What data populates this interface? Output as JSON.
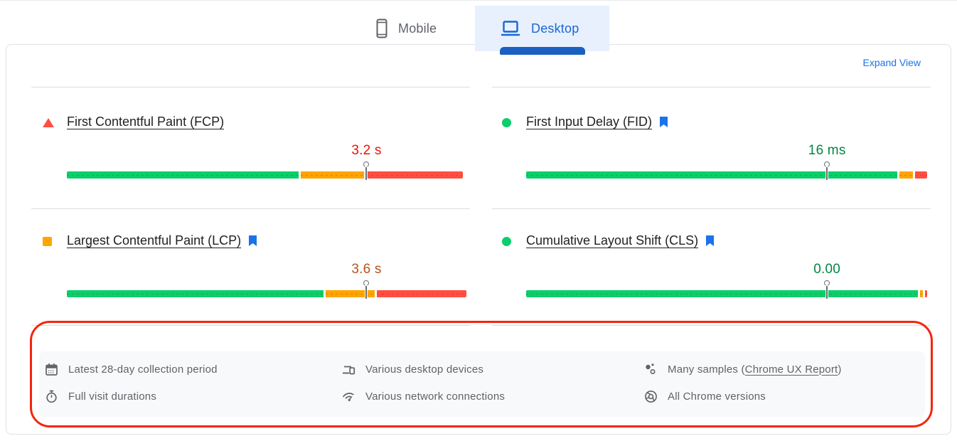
{
  "tabs": {
    "mobile": {
      "label": "Mobile",
      "active": false
    },
    "desktop": {
      "label": "Desktop",
      "active": true
    }
  },
  "expand_view_label": "Expand View",
  "metrics": [
    {
      "id": "fcp",
      "title": "First Contentful Paint (FCP)",
      "status": "poor",
      "status_icon": "triangle-icon",
      "value": "3.2 s",
      "has_bookmark": false,
      "bar": {
        "green_pct": 57.7,
        "orange_pct": 15.7,
        "red_pct": 24.2,
        "marker_pct": 74.6
      }
    },
    {
      "id": "fid",
      "title": "First Input Delay (FID)",
      "status": "good",
      "status_icon": "circle-icon",
      "value": "16 ms",
      "has_bookmark": true,
      "bar": {
        "green_pct": 92.4,
        "orange_pct": 3.4,
        "red_pct": 2.9,
        "marker_pct": 74.9
      }
    },
    {
      "id": "lcp",
      "title": "Largest Contentful Paint (LCP)",
      "status": "average",
      "status_icon": "square-icon",
      "value": "3.6 s",
      "has_bookmark": true,
      "bar": {
        "green_pct": 63.9,
        "orange_pct": 12.2,
        "red_pct": 22.3,
        "marker_pct": 74.6
      }
    },
    {
      "id": "cls",
      "title": "Cumulative Layout Shift (CLS)",
      "status": "good",
      "status_icon": "circle-icon",
      "value": "0.00",
      "has_bookmark": true,
      "bar": {
        "green_pct": 97.6,
        "orange_pct": 0.7,
        "red_pct": 0.5,
        "marker_pct": 74.9
      }
    }
  ],
  "metadata": {
    "collection_period": "Latest 28-day collection period",
    "visit_durations": "Full visit durations",
    "devices": "Various desktop devices",
    "connections": "Various network connections",
    "samples_prefix": "Many samples (",
    "samples_link": "Chrome UX Report",
    "samples_suffix": ")",
    "chrome_versions": "All Chrome versions"
  },
  "colors": {
    "tab_active_text": "#1967d2",
    "tab_active_bg": "#e8f0fe",
    "tab_indicator": "#1b5fc1",
    "link_blue": "#1a73e8",
    "bar_green": "#0cce6b",
    "bar_orange": "#ffa400",
    "bar_red": "#ff4e42",
    "value_good": "#018642",
    "value_average": "#b3541a",
    "value_poor": "#ee1105",
    "annotation_red": "#f3260e"
  }
}
